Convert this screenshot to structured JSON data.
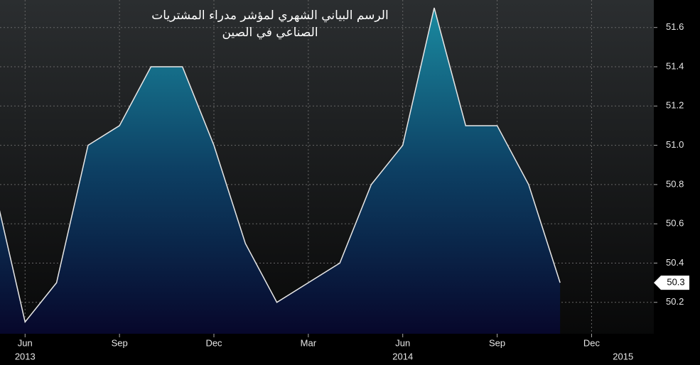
{
  "chart_data": {
    "type": "area",
    "title": [
      "الرسم البياني الشهري لمؤشر مدراء المشتريات",
      "الصناعي في الصين"
    ],
    "x": [
      "2013-05",
      "2013-06",
      "2013-07",
      "2013-08",
      "2013-09",
      "2013-10",
      "2013-11",
      "2013-12",
      "2014-01",
      "2014-02",
      "2014-03",
      "2014-04",
      "2014-05",
      "2014-06",
      "2014-07",
      "2014-08",
      "2014-09",
      "2014-10",
      "2014-11"
    ],
    "values": [
      50.8,
      50.1,
      50.3,
      51.0,
      51.1,
      51.4,
      51.4,
      51.0,
      50.5,
      50.2,
      50.3,
      50.4,
      50.8,
      51.0,
      51.7,
      51.1,
      51.1,
      50.8,
      50.3
    ],
    "color": "#e8e8e8",
    "xlim": [
      "2013-05",
      "2015-02"
    ],
    "xticks": [
      {
        "value": "2013-06",
        "label": "Jun"
      },
      {
        "value": "2013-09",
        "label": "Sep"
      },
      {
        "value": "2013-12",
        "label": "Dec"
      },
      {
        "value": "2014-03",
        "label": "Mar"
      },
      {
        "value": "2014-06",
        "label": "Jun"
      },
      {
        "value": "2014-09",
        "label": "Sep"
      },
      {
        "value": "2014-12",
        "label": "Dec"
      }
    ],
    "year_ticks": [
      {
        "value": "2013-06",
        "label": "2013"
      },
      {
        "value": "2014-06",
        "label": "2014"
      },
      {
        "value": "2015-01",
        "label": "2015"
      }
    ],
    "ylim": [
      50.04,
      51.74
    ],
    "yticks": [
      50.2,
      50.4,
      50.6,
      50.8,
      {
        "value": 51.0,
        "label": "51.0"
      },
      51.2,
      51.4,
      51.6
    ],
    "grid": true
  }
}
